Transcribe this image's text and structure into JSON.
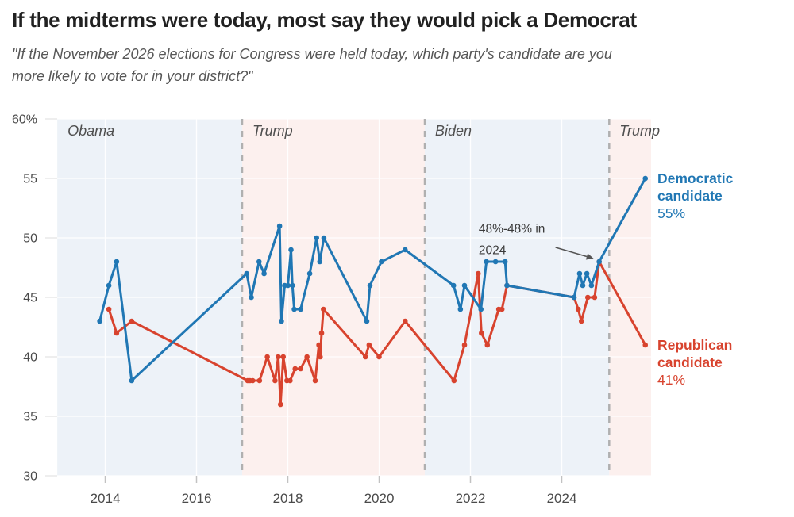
{
  "header": {
    "title": "If the midterms were today, most say they would pick a Democrat",
    "subtitle_lines": [
      "\"If the November 2026 elections for Congress were held today, which party's candidate are you",
      "more likely to vote for in your district?\""
    ]
  },
  "chart_data": {
    "type": "line",
    "unit": "%",
    "x_axis": {
      "range": [
        2012.95,
        2025.96
      ],
      "ticks": [
        2014,
        2016,
        2018,
        2020,
        2022,
        2024
      ]
    },
    "y_axis": {
      "range": [
        30,
        60
      ],
      "ticks": [
        {
          "value": 60,
          "label": "60%"
        },
        {
          "value": 55,
          "label": "55"
        },
        {
          "value": 50,
          "label": "50"
        },
        {
          "value": 45,
          "label": "45"
        },
        {
          "value": 40,
          "label": "40"
        },
        {
          "value": 35,
          "label": "35"
        },
        {
          "value": 30,
          "label": "30"
        }
      ]
    },
    "eras": [
      {
        "label": "Obama",
        "start": 2012.95,
        "end": 2017.0,
        "color": "#edf2f8",
        "divider": false
      },
      {
        "label": "Trump",
        "start": 2017.0,
        "end": 2021.0,
        "color": "#fcf0ee",
        "divider": true
      },
      {
        "label": "Biden",
        "start": 2021.0,
        "end": 2025.04,
        "color": "#edf2f8",
        "divider": true
      },
      {
        "label": "Trump",
        "start": 2025.04,
        "end": 2025.96,
        "color": "#fcf0ee",
        "divider": true
      }
    ],
    "series": [
      {
        "name": "Republican candidate",
        "label_lines": [
          "Republican",
          "candidate"
        ],
        "end_value_label": "41%",
        "color": "#d8432e",
        "points": [
          [
            2014.08,
            44
          ],
          [
            2014.25,
            42
          ],
          [
            2014.58,
            43
          ],
          [
            2017.12,
            38
          ],
          [
            2017.17,
            38
          ],
          [
            2017.23,
            38
          ],
          [
            2017.38,
            38
          ],
          [
            2017.55,
            40
          ],
          [
            2017.72,
            38
          ],
          [
            2017.79,
            40
          ],
          [
            2017.84,
            36
          ],
          [
            2017.9,
            40
          ],
          [
            2017.98,
            38
          ],
          [
            2018.05,
            38
          ],
          [
            2018.16,
            39
          ],
          [
            2018.28,
            39
          ],
          [
            2018.42,
            40
          ],
          [
            2018.6,
            38
          ],
          [
            2018.68,
            41
          ],
          [
            2018.71,
            40
          ],
          [
            2018.74,
            42
          ],
          [
            2018.78,
            44
          ],
          [
            2019.7,
            40
          ],
          [
            2019.78,
            41
          ],
          [
            2020.0,
            40
          ],
          [
            2020.57,
            43
          ],
          [
            2021.64,
            38
          ],
          [
            2021.87,
            41
          ],
          [
            2022.17,
            47
          ],
          [
            2022.24,
            42
          ],
          [
            2022.37,
            41
          ],
          [
            2022.62,
            44
          ],
          [
            2022.69,
            44
          ],
          [
            2022.8,
            46
          ],
          [
            2024.27,
            45
          ],
          [
            2024.36,
            44
          ],
          [
            2024.43,
            43
          ],
          [
            2024.57,
            45
          ],
          [
            2024.72,
            45
          ],
          [
            2024.82,
            48
          ],
          [
            2025.83,
            41
          ]
        ]
      },
      {
        "name": "Democratic candidate",
        "label_lines": [
          "Democratic",
          "candidate"
        ],
        "end_value_label": "55%",
        "color": "#2077b4",
        "points": [
          [
            2013.88,
            43
          ],
          [
            2014.08,
            46
          ],
          [
            2014.25,
            48
          ],
          [
            2014.58,
            38
          ],
          [
            2017.1,
            47
          ],
          [
            2017.2,
            45
          ],
          [
            2017.37,
            48
          ],
          [
            2017.48,
            47
          ],
          [
            2017.82,
            51
          ],
          [
            2017.86,
            43
          ],
          [
            2017.93,
            46
          ],
          [
            2018.0,
            46
          ],
          [
            2018.07,
            49
          ],
          [
            2018.1,
            46
          ],
          [
            2018.14,
            44
          ],
          [
            2018.28,
            44
          ],
          [
            2018.48,
            47
          ],
          [
            2018.63,
            50
          ],
          [
            2018.7,
            48
          ],
          [
            2018.79,
            50
          ],
          [
            2019.73,
            43
          ],
          [
            2019.8,
            46
          ],
          [
            2020.05,
            48
          ],
          [
            2020.57,
            49
          ],
          [
            2021.63,
            46
          ],
          [
            2021.78,
            44
          ],
          [
            2021.87,
            46
          ],
          [
            2022.23,
            44
          ],
          [
            2022.35,
            48
          ],
          [
            2022.55,
            48
          ],
          [
            2022.76,
            48
          ],
          [
            2022.8,
            46
          ],
          [
            2024.27,
            45
          ],
          [
            2024.39,
            47
          ],
          [
            2024.46,
            46
          ],
          [
            2024.55,
            47
          ],
          [
            2024.65,
            46
          ],
          [
            2024.82,
            48
          ],
          [
            2025.83,
            55
          ]
        ]
      }
    ],
    "annotation": {
      "lines": [
        "48%-48% in",
        "2024"
      ],
      "target": {
        "x": 2024.82,
        "y": 48
      },
      "text_pos": {
        "x": 2022.18,
        "y": 51.3
      }
    },
    "style": {
      "grid_stub_color": "#e3e3e3",
      "grid_band_color": "rgba(255,255,255,0.9)",
      "divider_color": "#b0b0b0",
      "tick_color": "#c2c2c2",
      "axis_label_color": "#4a4a4a",
      "era_label_color": "#4f4f4f",
      "annotation_color": "#3a3a3a",
      "arrow_color": "#555555"
    }
  }
}
